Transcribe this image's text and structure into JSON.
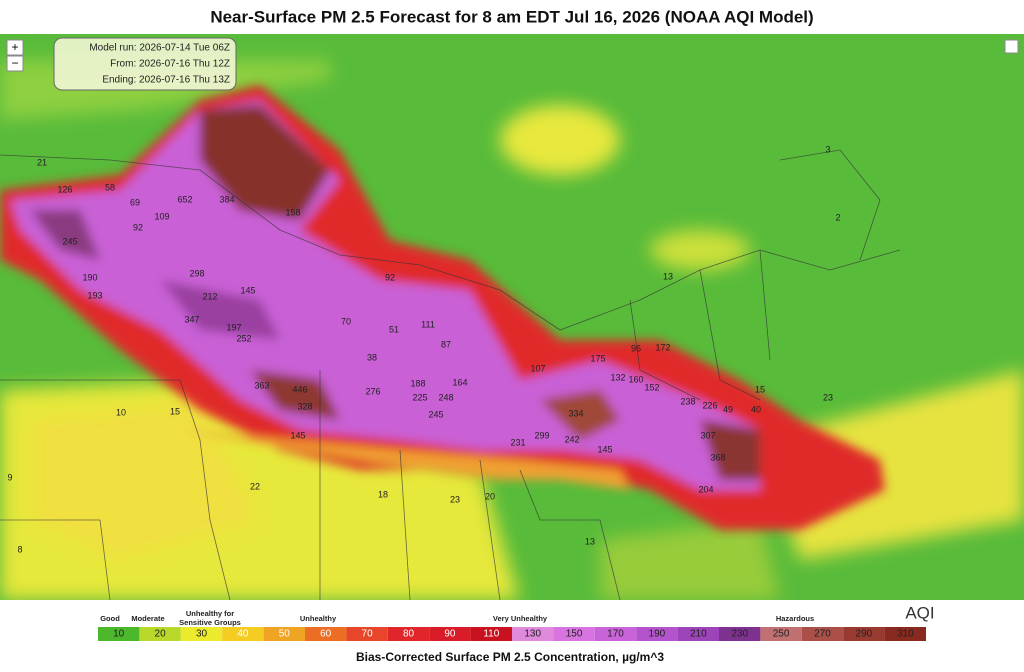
{
  "header": {
    "title": "Near-Surface PM 2.5 Forecast for 8 am EDT Jul 16, 2026 (NOAA AQI Model)"
  },
  "info_box": {
    "model_run": "Model run: 2026-07-14 Tue 06Z",
    "from": "From: 2026-07-16 Thu 12Z",
    "ending": "Ending: 2026-07-16 Thu 13Z"
  },
  "controls": {
    "zoom_in": "+",
    "zoom_out": "−"
  },
  "map": {
    "station_values": [
      21,
      58,
      126,
      69,
      109,
      652,
      384,
      158,
      245,
      92,
      190,
      193,
      298,
      212,
      145,
      347,
      197,
      252,
      363,
      446,
      328,
      145,
      276,
      188,
      225,
      245,
      248,
      164,
      92,
      38,
      70,
      51,
      111,
      87,
      107,
      175,
      132,
      160,
      152,
      334,
      242,
      145,
      299,
      231,
      238,
      226,
      307,
      368,
      204,
      49,
      40,
      15,
      23,
      13,
      96,
      172,
      10,
      15,
      22,
      18,
      23,
      20,
      13,
      9,
      8,
      3,
      2
    ]
  },
  "legend": {
    "categories": [
      "Good",
      "Moderate",
      "Unhealthy for Sensitive Groups",
      "Unhealthy",
      "Very Unhealthy",
      "Hazardous"
    ],
    "index_label": "AQI",
    "scale": [
      {
        "value": 10,
        "color": "#4cb82c"
      },
      {
        "value": 20,
        "color": "#b8d82a"
      },
      {
        "value": 30,
        "color": "#ecea2c"
      },
      {
        "value": 40,
        "color": "#f4cc22"
      },
      {
        "value": 50,
        "color": "#f0a424"
      },
      {
        "value": 60,
        "color": "#ec6e24"
      },
      {
        "value": 70,
        "color": "#e8462a"
      },
      {
        "value": 80,
        "color": "#e0262a"
      },
      {
        "value": 90,
        "color": "#d81c28"
      },
      {
        "value": 110,
        "color": "#c81220"
      },
      {
        "value": 130,
        "color": "#e08ade"
      },
      {
        "value": 150,
        "color": "#d874e0"
      },
      {
        "value": 170,
        "color": "#c864d8"
      },
      {
        "value": 190,
        "color": "#b454cc"
      },
      {
        "value": 210,
        "color": "#9c44b8"
      },
      {
        "value": 230,
        "color": "#7e3290"
      },
      {
        "value": 250,
        "color": "#c07070"
      },
      {
        "value": 270,
        "color": "#aa5048"
      },
      {
        "value": 290,
        "color": "#983a30"
      },
      {
        "value": 310,
        "color": "#882a20"
      }
    ],
    "footer": "Bias-Corrected Surface PM 2.5 Concentration, µg/m^3"
  }
}
